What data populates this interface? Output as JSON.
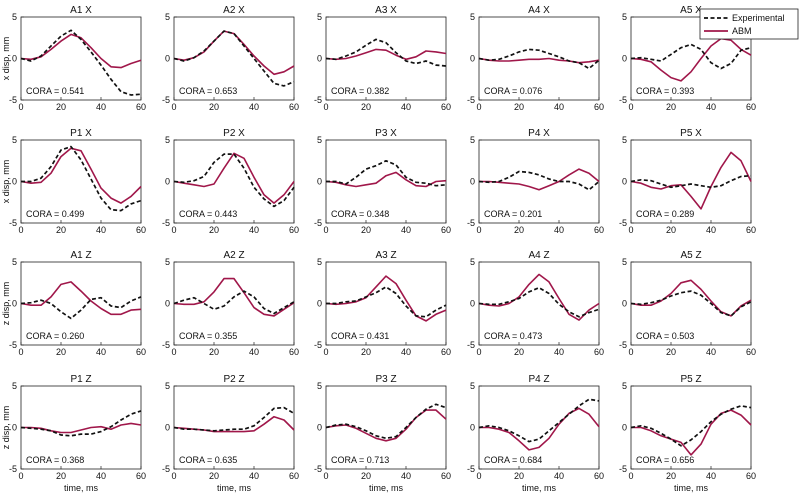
{
  "colors": {
    "experimental": "#111111",
    "abm": "#a0174a",
    "axis": "#222222",
    "background": "#ffffff"
  },
  "chart_data": {
    "type": "line",
    "x_axis": {
      "label": "time, ms",
      "range": [
        0,
        60
      ],
      "ticks": [
        0,
        20,
        40,
        60
      ]
    },
    "y_axis": {
      "range": [
        -5,
        5
      ],
      "ticks": [
        -5,
        0,
        5
      ]
    },
    "row_ylabels": [
      "x disp, mm",
      "x disp, mm",
      "z disp, mm",
      "z disp, mm"
    ],
    "legend": {
      "placement": "top-right",
      "entries": [
        {
          "name": "Experimental",
          "style": "dashed",
          "color": "#111111"
        },
        {
          "name": "ABM",
          "style": "solid",
          "color": "#a0174a"
        }
      ]
    },
    "x_points": [
      0,
      5,
      10,
      15,
      20,
      25,
      30,
      35,
      40,
      45,
      50,
      55,
      60
    ],
    "panels": [
      {
        "title": "A1 X",
        "cora": "CORA = 0.541",
        "experimental": [
          0,
          -0.3,
          0.3,
          1.5,
          2.7,
          3.4,
          2.3,
          0.8,
          -0.8,
          -2.5,
          -4,
          -4.4,
          -4.3
        ],
        "abm": [
          0,
          -0.1,
          0.2,
          1.1,
          2.1,
          2.9,
          2.5,
          1.3,
          0,
          -1,
          -1.1,
          -0.6,
          -0.2
        ]
      },
      {
        "title": "A2 X",
        "cora": "CORA = 0.653",
        "experimental": [
          0,
          -0.3,
          0.1,
          0.9,
          2.1,
          3.3,
          3.0,
          1.5,
          0,
          -1.5,
          -3.0,
          -3.3,
          -2.8
        ],
        "abm": [
          0,
          -0.2,
          0.1,
          0.8,
          2.1,
          3.3,
          3.0,
          1.7,
          0.3,
          -0.9,
          -1.9,
          -1.6,
          -0.9
        ]
      },
      {
        "title": "A3 X",
        "cora": "CORA = 0.382",
        "experimental": [
          0,
          -0.1,
          0.3,
          0.8,
          1.6,
          2.3,
          1.9,
          0.7,
          -0.3,
          -0.6,
          -0.3,
          -0.8,
          -0.9
        ],
        "abm": [
          0,
          -0.1,
          0,
          0.3,
          0.7,
          1.1,
          1.0,
          0.4,
          -0.1,
          0.2,
          0.9,
          0.8,
          0.6
        ]
      },
      {
        "title": "A4 X",
        "cora": "CORA = 0.076",
        "experimental": [
          0,
          -0.2,
          -0.1,
          0.3,
          0.8,
          1.1,
          1.0,
          0.6,
          0.2,
          -0.3,
          -0.5,
          -1.2,
          -0.2
        ],
        "abm": [
          0,
          -0.2,
          -0.3,
          -0.3,
          -0.2,
          -0.1,
          -0.1,
          0,
          -0.2,
          -0.3,
          -0.5,
          -0.4,
          -0.2
        ]
      },
      {
        "title": "A5 X",
        "cora": "CORA = 0.393",
        "experimental": [
          0,
          0.1,
          -0.1,
          -0.3,
          0.5,
          1.3,
          1.7,
          1.1,
          -0.5,
          -1.2,
          -0.6,
          1.0,
          1.3
        ],
        "abm": [
          0,
          -0.1,
          -0.4,
          -1.4,
          -2.3,
          -2.7,
          -1.6,
          0,
          1.5,
          2.4,
          2.2,
          1.1,
          0.4
        ]
      },
      {
        "title": "P1 X",
        "cora": "CORA = 0.499",
        "experimental": [
          0,
          0,
          0.4,
          1.8,
          3.8,
          4.2,
          2.6,
          0.3,
          -2.0,
          -3.4,
          -3.5,
          -2.7,
          -2.3
        ],
        "abm": [
          0,
          -0.2,
          -0.1,
          1.0,
          3.0,
          4.0,
          3.7,
          1.5,
          -0.8,
          -2.0,
          -2.6,
          -1.8,
          -0.6
        ]
      },
      {
        "title": "P2 X",
        "cora": "CORA = 0.443",
        "experimental": [
          0,
          -0.1,
          0.1,
          0.6,
          2.3,
          3.3,
          3.3,
          1.6,
          -0.7,
          -2.1,
          -3.0,
          -2.3,
          -0.7
        ],
        "abm": [
          0,
          -0.2,
          -0.4,
          -0.6,
          -0.3,
          1.6,
          3.4,
          2.8,
          0.5,
          -1.6,
          -2.6,
          -1.6,
          0
        ]
      },
      {
        "title": "P3 X",
        "cora": "CORA = 0.348",
        "experimental": [
          0,
          0,
          -0.3,
          0.5,
          1.5,
          1.9,
          2.5,
          2.0,
          0.5,
          -0.1,
          -0.2,
          -0.5,
          -0.4
        ],
        "abm": [
          0,
          -0.1,
          -0.4,
          -0.6,
          -0.4,
          -0.2,
          0.7,
          1.1,
          0.2,
          -0.5,
          -0.6,
          0,
          0.1
        ]
      },
      {
        "title": "P4 X",
        "cora": "CORA = 0.201",
        "experimental": [
          0,
          -0.1,
          0,
          0.5,
          1.2,
          1.1,
          0.8,
          0.3,
          0,
          0,
          -0.3,
          -1.0,
          0
        ],
        "abm": [
          0,
          0,
          -0.1,
          -0.2,
          -0.3,
          -0.6,
          -1.0,
          -0.5,
          0,
          0.8,
          1.5,
          1.0,
          0
        ]
      },
      {
        "title": "P5 X",
        "cora": "CORA = 0.289",
        "experimental": [
          0,
          0.2,
          0.1,
          -0.3,
          -0.7,
          -0.5,
          -0.3,
          -0.5,
          -0.7,
          -0.5,
          0.1,
          0.6,
          0.7
        ],
        "abm": [
          0,
          -0.2,
          -0.7,
          -0.9,
          -0.5,
          -0.4,
          -1.8,
          -3.3,
          -0.6,
          1.7,
          3.5,
          2.5,
          0
        ]
      },
      {
        "title": "A1 Z",
        "cora": "CORA = 0.260",
        "experimental": [
          0,
          0.1,
          0.4,
          0,
          -1.0,
          -1.8,
          -0.8,
          0.5,
          0.7,
          -0.3,
          -0.5,
          0.3,
          0.8
        ],
        "abm": [
          0,
          -0.2,
          -0.2,
          0.8,
          2.3,
          2.6,
          1.5,
          0.3,
          -0.6,
          -1.3,
          -1.3,
          -0.8,
          -0.7
        ]
      },
      {
        "title": "A2 Z",
        "cora": "CORA = 0.355",
        "experimental": [
          0,
          0.4,
          0.7,
          0,
          -0.7,
          -0.3,
          0.8,
          1.5,
          0.8,
          -0.6,
          -1.2,
          -0.5,
          0.2
        ],
        "abm": [
          0,
          -0.1,
          -0.1,
          0.2,
          1.4,
          3.0,
          3.0,
          1.3,
          -0.5,
          -1.3,
          -1.5,
          -0.7,
          0.1
        ]
      },
      {
        "title": "A3 Z",
        "cora": "CORA = 0.431",
        "experimental": [
          0,
          0,
          0.2,
          0.3,
          0.8,
          1.3,
          2.0,
          1.2,
          -0.3,
          -1.5,
          -1.6,
          -0.8,
          -0.2
        ],
        "abm": [
          0,
          -0.1,
          0,
          0.2,
          0.7,
          2.0,
          3.3,
          2.4,
          0.4,
          -1.5,
          -2.1,
          -1.3,
          -0.8
        ]
      },
      {
        "title": "A4 Z",
        "cora": "CORA = 0.473",
        "experimental": [
          0,
          -0.1,
          -0.1,
          0.2,
          0.6,
          1.4,
          1.9,
          1.2,
          -0.1,
          -1.0,
          -1.6,
          -1.1,
          -0.7
        ],
        "abm": [
          0,
          -0.2,
          -0.3,
          0,
          0.8,
          2.3,
          3.5,
          2.6,
          0.6,
          -1.3,
          -2.0,
          -0.8,
          0
        ]
      },
      {
        "title": "A5 Z",
        "cora": "CORA = 0.503",
        "experimental": [
          0,
          -0.1,
          0.1,
          0.4,
          0.9,
          1.3,
          1.5,
          1.0,
          0,
          -1.1,
          -1.5,
          -0.4,
          0.2
        ],
        "abm": [
          0,
          -0.2,
          -0.2,
          0.3,
          1.2,
          2.5,
          2.8,
          1.7,
          0.3,
          -1.0,
          -1.5,
          -0.3,
          0.4
        ]
      },
      {
        "title": "P1 Z",
        "cora": "CORA = 0.368",
        "experimental": [
          0,
          -0.1,
          -0.2,
          -0.4,
          -0.9,
          -1.0,
          -0.8,
          -0.8,
          -0.5,
          0.1,
          0.9,
          1.6,
          2.0
        ],
        "abm": [
          0,
          0,
          -0.1,
          -0.4,
          -0.6,
          -0.6,
          -0.3,
          0,
          0.1,
          -0.2,
          0.3,
          0.5,
          0.3
        ]
      },
      {
        "title": "P2 Z",
        "cora": "CORA = 0.635",
        "experimental": [
          0,
          -0.2,
          -0.2,
          -0.3,
          -0.4,
          -0.3,
          -0.2,
          -0.2,
          0.2,
          1.2,
          2.3,
          2.4,
          1.7
        ],
        "abm": [
          0,
          -0.1,
          -0.2,
          -0.3,
          -0.5,
          -0.5,
          -0.5,
          -0.5,
          -0.4,
          0.4,
          1.3,
          0.9,
          -0.3
        ]
      },
      {
        "title": "P3 Z",
        "cora": "CORA = 0.713",
        "experimental": [
          0,
          0.3,
          0.4,
          0.1,
          -0.4,
          -1.0,
          -1.3,
          -1.1,
          0,
          1.2,
          2.2,
          2.8,
          2.4
        ],
        "abm": [
          0,
          0.2,
          0.3,
          -0.1,
          -0.7,
          -1.3,
          -1.6,
          -1.3,
          -0.2,
          1.2,
          2.1,
          2.1,
          1.0
        ]
      },
      {
        "title": "P4 Z",
        "cora": "CORA = 0.684",
        "experimental": [
          0,
          0.2,
          0,
          -0.4,
          -1.0,
          -1.7,
          -1.4,
          -0.4,
          0.6,
          1.6,
          2.6,
          3.4,
          3.2
        ],
        "abm": [
          0,
          0,
          -0.2,
          -0.6,
          -1.6,
          -2.7,
          -2.4,
          -1.3,
          0.4,
          1.7,
          2.3,
          1.6,
          0.1
        ]
      },
      {
        "title": "P5 Z",
        "cora": "CORA = 0.656",
        "experimental": [
          0,
          0.2,
          -0.1,
          -0.7,
          -1.4,
          -2.2,
          -1.5,
          -0.5,
          0.7,
          1.6,
          2.2,
          2.6,
          2.4
        ],
        "abm": [
          0,
          0,
          -0.4,
          -1.0,
          -1.4,
          -1.8,
          -3.3,
          -2.0,
          0.4,
          1.7,
          2.1,
          1.5,
          0.3
        ]
      }
    ]
  }
}
